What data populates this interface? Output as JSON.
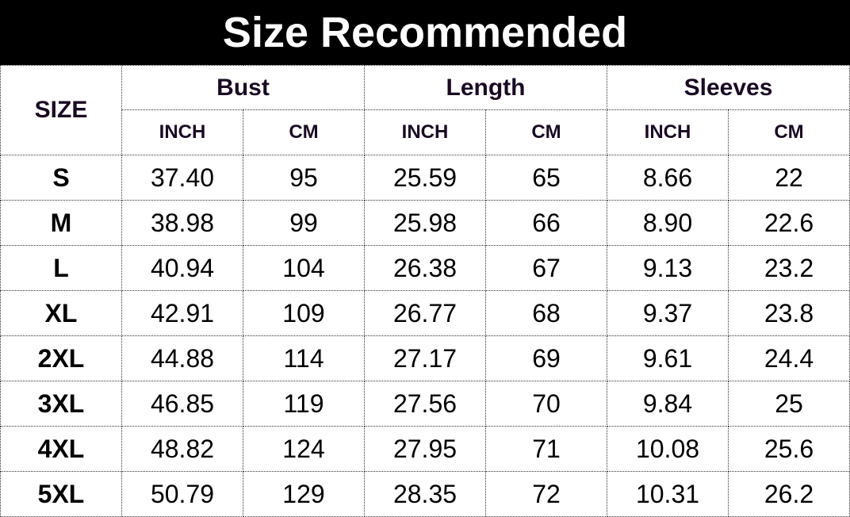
{
  "title": "Size Recommended",
  "size_header": "SIZE",
  "groups": [
    "Bust",
    "Length",
    "Sleeves"
  ],
  "units": [
    "INCH",
    "CM"
  ],
  "rows": [
    {
      "size": "S",
      "values": [
        "37.40",
        "95",
        "25.59",
        "65",
        "8.66",
        "22"
      ]
    },
    {
      "size": "M",
      "values": [
        "38.98",
        "99",
        "25.98",
        "66",
        "8.90",
        "22.6"
      ]
    },
    {
      "size": "L",
      "values": [
        "40.94",
        "104",
        "26.38",
        "67",
        "9.13",
        "23.2"
      ]
    },
    {
      "size": "XL",
      "values": [
        "42.91",
        "109",
        "26.77",
        "68",
        "9.37",
        "23.8"
      ]
    },
    {
      "size": "2XL",
      "values": [
        "44.88",
        "114",
        "27.17",
        "69",
        "9.61",
        "24.4"
      ]
    },
    {
      "size": "3XL",
      "values": [
        "46.85",
        "119",
        "27.56",
        "70",
        "9.84",
        "25"
      ]
    },
    {
      "size": "4XL",
      "values": [
        "48.82",
        "124",
        "27.95",
        "71",
        "10.08",
        "25.6"
      ]
    },
    {
      "size": "5XL",
      "values": [
        "50.79",
        "129",
        "28.35",
        "72",
        "10.31",
        "26.2"
      ]
    }
  ],
  "colors": {
    "title_bg": "#000000",
    "title_text": "#ffffff",
    "header_text": "#1a0a24"
  }
}
